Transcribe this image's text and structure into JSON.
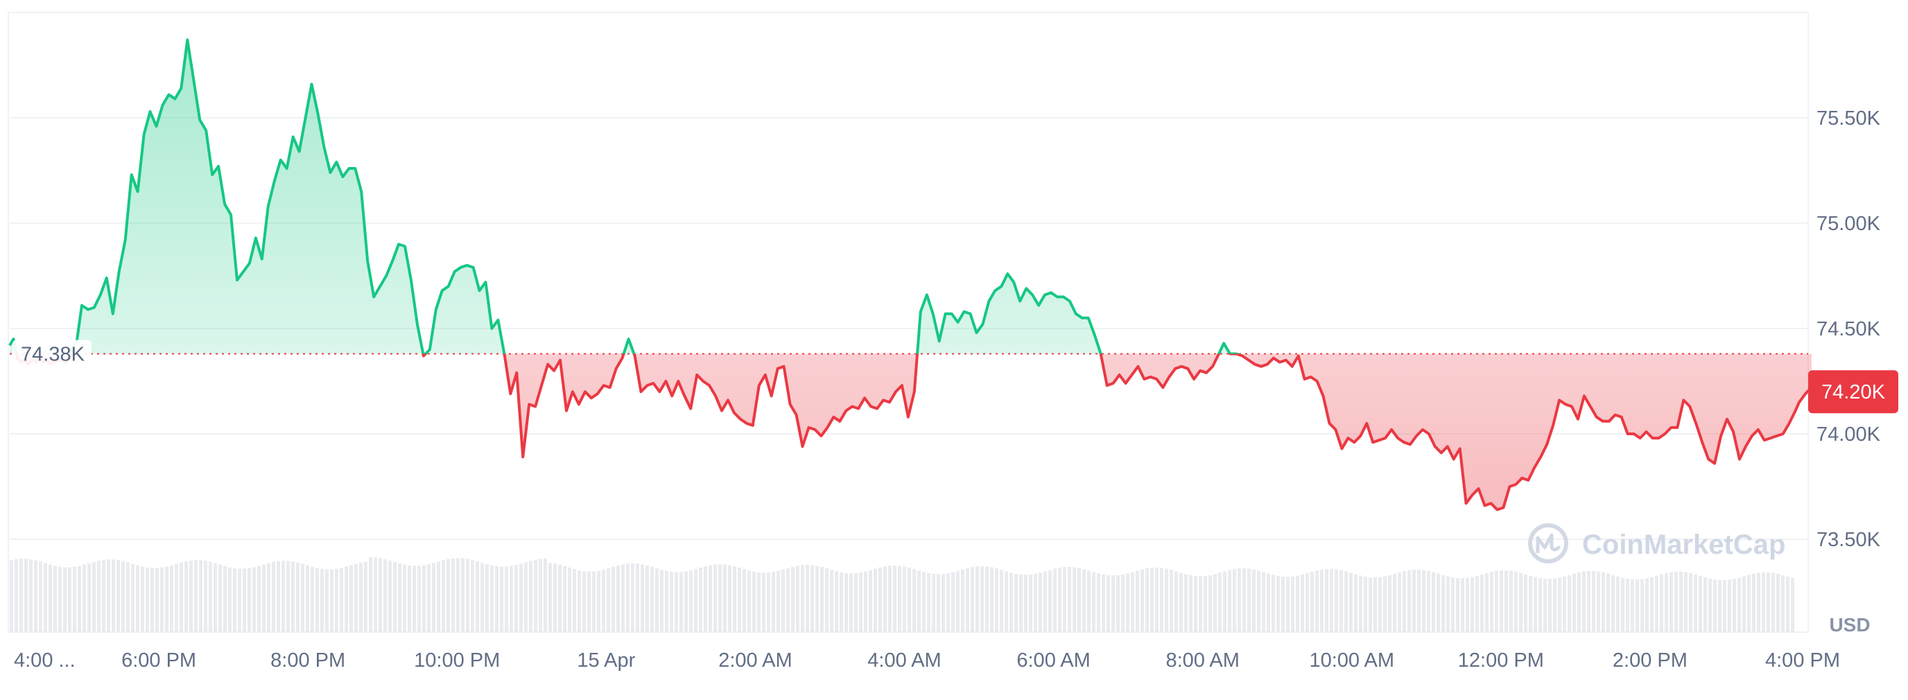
{
  "chart_data": {
    "type": "area",
    "currency_label": "USD",
    "watermark": "CoinMarketCap",
    "baseline_value": 74380,
    "baseline_label": "74.38K",
    "current_value": 74200,
    "current_label": "74.20K",
    "ylim": [
      73300,
      76000
    ],
    "y_ticks": [
      {
        "value": 75500,
        "label": "75.50K"
      },
      {
        "value": 75000,
        "label": "75.00K"
      },
      {
        "value": 74500,
        "label": "74.50K"
      },
      {
        "value": 74000,
        "label": "74.00K"
      },
      {
        "value": 73500,
        "label": "73.50K"
      }
    ],
    "x_range": [
      0,
      1440
    ],
    "x_ticks": [
      {
        "t": 0,
        "label": "4:00 ..."
      },
      {
        "t": 120,
        "label": "6:00 PM"
      },
      {
        "t": 240,
        "label": "8:00 PM"
      },
      {
        "t": 360,
        "label": "10:00 PM"
      },
      {
        "t": 480,
        "label": "15 Apr"
      },
      {
        "t": 600,
        "label": "2:00 AM"
      },
      {
        "t": 720,
        "label": "4:00 AM"
      },
      {
        "t": 840,
        "label": "6:00 AM"
      },
      {
        "t": 960,
        "label": "8:00 AM"
      },
      {
        "t": 1080,
        "label": "10:00 AM"
      },
      {
        "t": 1200,
        "label": "12:00 PM"
      },
      {
        "t": 1320,
        "label": "2:00 PM"
      },
      {
        "t": 1440,
        "label": "4:00 PM"
      }
    ],
    "series": [
      {
        "points": [
          [
            0,
            74420
          ],
          [
            3,
            74450
          ],
          [
            6,
            74360
          ],
          [
            9,
            74340
          ],
          [
            12,
            74350
          ],
          [
            15,
            74330
          ],
          [
            18,
            74350
          ],
          [
            21,
            74340
          ],
          [
            24,
            74360
          ],
          [
            27,
            74340
          ],
          [
            30,
            74350
          ],
          [
            33,
            74330
          ],
          [
            36,
            74340
          ],
          [
            39,
            74350
          ],
          [
            42,
            74350
          ],
          [
            45,
            74340
          ],
          [
            48,
            74360
          ],
          [
            50,
            74400
          ],
          [
            54,
            74440
          ],
          [
            58,
            74610
          ],
          [
            63,
            74590
          ],
          [
            68,
            74600
          ],
          [
            73,
            74660
          ],
          [
            78,
            74740
          ],
          [
            83,
            74570
          ],
          [
            88,
            74770
          ],
          [
            93,
            74920
          ],
          [
            98,
            75230
          ],
          [
            103,
            75150
          ],
          [
            108,
            75420
          ],
          [
            113,
            75530
          ],
          [
            118,
            75460
          ],
          [
            123,
            75560
          ],
          [
            128,
            75610
          ],
          [
            133,
            75590
          ],
          [
            138,
            75640
          ],
          [
            143,
            75870
          ],
          [
            148,
            75680
          ],
          [
            153,
            75490
          ],
          [
            158,
            75440
          ],
          [
            163,
            75230
          ],
          [
            168,
            75270
          ],
          [
            173,
            75090
          ],
          [
            178,
            75040
          ],
          [
            183,
            74730
          ],
          [
            188,
            74770
          ],
          [
            193,
            74810
          ],
          [
            198,
            74930
          ],
          [
            203,
            74830
          ],
          [
            208,
            75080
          ],
          [
            213,
            75200
          ],
          [
            218,
            75300
          ],
          [
            223,
            75260
          ],
          [
            228,
            75410
          ],
          [
            233,
            75340
          ],
          [
            238,
            75500
          ],
          [
            243,
            75660
          ],
          [
            248,
            75520
          ],
          [
            253,
            75360
          ],
          [
            258,
            75240
          ],
          [
            263,
            75290
          ],
          [
            268,
            75220
          ],
          [
            273,
            75260
          ],
          [
            278,
            75260
          ],
          [
            283,
            75150
          ],
          [
            288,
            74820
          ],
          [
            293,
            74650
          ],
          [
            298,
            74700
          ],
          [
            303,
            74750
          ],
          [
            308,
            74820
          ],
          [
            313,
            74900
          ],
          [
            318,
            74890
          ],
          [
            323,
            74730
          ],
          [
            328,
            74520
          ],
          [
            333,
            74370
          ],
          [
            338,
            74400
          ],
          [
            343,
            74590
          ],
          [
            348,
            74680
          ],
          [
            353,
            74700
          ],
          [
            358,
            74770
          ],
          [
            363,
            74790
          ],
          [
            368,
            74800
          ],
          [
            373,
            74790
          ],
          [
            378,
            74680
          ],
          [
            383,
            74720
          ],
          [
            388,
            74500
          ],
          [
            393,
            74540
          ],
          [
            398,
            74380
          ],
          [
            403,
            74190
          ],
          [
            408,
            74290
          ],
          [
            413,
            73890
          ],
          [
            418,
            74140
          ],
          [
            423,
            74130
          ],
          [
            428,
            74230
          ],
          [
            433,
            74330
          ],
          [
            438,
            74300
          ],
          [
            443,
            74350
          ],
          [
            448,
            74110
          ],
          [
            453,
            74200
          ],
          [
            458,
            74140
          ],
          [
            463,
            74200
          ],
          [
            468,
            74170
          ],
          [
            473,
            74190
          ],
          [
            478,
            74230
          ],
          [
            483,
            74220
          ],
          [
            488,
            74310
          ],
          [
            493,
            74360
          ],
          [
            498,
            74450
          ],
          [
            503,
            74370
          ],
          [
            508,
            74200
          ],
          [
            513,
            74230
          ],
          [
            518,
            74240
          ],
          [
            523,
            74200
          ],
          [
            528,
            74250
          ],
          [
            533,
            74180
          ],
          [
            538,
            74250
          ],
          [
            543,
            74180
          ],
          [
            548,
            74120
          ],
          [
            553,
            74280
          ],
          [
            558,
            74250
          ],
          [
            563,
            74230
          ],
          [
            568,
            74180
          ],
          [
            573,
            74110
          ],
          [
            578,
            74160
          ],
          [
            583,
            74100
          ],
          [
            588,
            74070
          ],
          [
            593,
            74050
          ],
          [
            598,
            74040
          ],
          [
            603,
            74230
          ],
          [
            608,
            74280
          ],
          [
            613,
            74180
          ],
          [
            618,
            74310
          ],
          [
            623,
            74320
          ],
          [
            628,
            74140
          ],
          [
            633,
            74090
          ],
          [
            638,
            73940
          ],
          [
            643,
            74030
          ],
          [
            648,
            74020
          ],
          [
            653,
            73990
          ],
          [
            658,
            74030
          ],
          [
            663,
            74080
          ],
          [
            668,
            74060
          ],
          [
            673,
            74110
          ],
          [
            678,
            74130
          ],
          [
            683,
            74120
          ],
          [
            688,
            74170
          ],
          [
            693,
            74130
          ],
          [
            698,
            74120
          ],
          [
            703,
            74160
          ],
          [
            708,
            74150
          ],
          [
            713,
            74200
          ],
          [
            718,
            74230
          ],
          [
            723,
            74080
          ],
          [
            728,
            74200
          ],
          [
            733,
            74580
          ],
          [
            738,
            74660
          ],
          [
            743,
            74570
          ],
          [
            748,
            74440
          ],
          [
            753,
            74570
          ],
          [
            758,
            74570
          ],
          [
            763,
            74530
          ],
          [
            768,
            74580
          ],
          [
            773,
            74570
          ],
          [
            778,
            74480
          ],
          [
            783,
            74520
          ],
          [
            788,
            74630
          ],
          [
            793,
            74680
          ],
          [
            798,
            74700
          ],
          [
            803,
            74760
          ],
          [
            808,
            74720
          ],
          [
            813,
            74630
          ],
          [
            818,
            74690
          ],
          [
            823,
            74660
          ],
          [
            828,
            74610
          ],
          [
            833,
            74660
          ],
          [
            838,
            74670
          ],
          [
            843,
            74650
          ],
          [
            848,
            74650
          ],
          [
            853,
            74630
          ],
          [
            858,
            74570
          ],
          [
            863,
            74550
          ],
          [
            868,
            74550
          ],
          [
            873,
            74470
          ],
          [
            878,
            74380
          ],
          [
            883,
            74230
          ],
          [
            888,
            74240
          ],
          [
            893,
            74280
          ],
          [
            898,
            74240
          ],
          [
            903,
            74280
          ],
          [
            908,
            74320
          ],
          [
            913,
            74260
          ],
          [
            918,
            74270
          ],
          [
            923,
            74260
          ],
          [
            928,
            74220
          ],
          [
            933,
            74270
          ],
          [
            938,
            74310
          ],
          [
            943,
            74320
          ],
          [
            948,
            74310
          ],
          [
            953,
            74260
          ],
          [
            958,
            74300
          ],
          [
            963,
            74290
          ],
          [
            968,
            74320
          ],
          [
            973,
            74380
          ],
          [
            977,
            74430
          ],
          [
            982,
            74380
          ],
          [
            987,
            74380
          ],
          [
            992,
            74370
          ],
          [
            997,
            74350
          ],
          [
            1002,
            74330
          ],
          [
            1007,
            74320
          ],
          [
            1012,
            74330
          ],
          [
            1017,
            74360
          ],
          [
            1022,
            74340
          ],
          [
            1027,
            74350
          ],
          [
            1032,
            74320
          ],
          [
            1037,
            74370
          ],
          [
            1042,
            74260
          ],
          [
            1047,
            74270
          ],
          [
            1052,
            74250
          ],
          [
            1057,
            74180
          ],
          [
            1062,
            74050
          ],
          [
            1067,
            74020
          ],
          [
            1072,
            73930
          ],
          [
            1077,
            73980
          ],
          [
            1082,
            73960
          ],
          [
            1087,
            73990
          ],
          [
            1092,
            74050
          ],
          [
            1097,
            73960
          ],
          [
            1102,
            73970
          ],
          [
            1107,
            73980
          ],
          [
            1112,
            74020
          ],
          [
            1117,
            73980
          ],
          [
            1122,
            73960
          ],
          [
            1127,
            73950
          ],
          [
            1132,
            73990
          ],
          [
            1137,
            74020
          ],
          [
            1142,
            74000
          ],
          [
            1147,
            73940
          ],
          [
            1152,
            73910
          ],
          [
            1157,
            73940
          ],
          [
            1162,
            73880
          ],
          [
            1167,
            73930
          ],
          [
            1172,
            73670
          ],
          [
            1177,
            73710
          ],
          [
            1182,
            73740
          ],
          [
            1187,
            73660
          ],
          [
            1192,
            73670
          ],
          [
            1197,
            73640
          ],
          [
            1202,
            73650
          ],
          [
            1207,
            73750
          ],
          [
            1212,
            73760
          ],
          [
            1217,
            73790
          ],
          [
            1222,
            73780
          ],
          [
            1227,
            73840
          ],
          [
            1232,
            73890
          ],
          [
            1237,
            73950
          ],
          [
            1242,
            74040
          ],
          [
            1247,
            74160
          ],
          [
            1252,
            74140
          ],
          [
            1257,
            74130
          ],
          [
            1262,
            74070
          ],
          [
            1267,
            74180
          ],
          [
            1272,
            74130
          ],
          [
            1277,
            74080
          ],
          [
            1282,
            74060
          ],
          [
            1287,
            74060
          ],
          [
            1292,
            74090
          ],
          [
            1297,
            74080
          ],
          [
            1302,
            74000
          ],
          [
            1307,
            74000
          ],
          [
            1312,
            73980
          ],
          [
            1317,
            74010
          ],
          [
            1322,
            73980
          ],
          [
            1327,
            73980
          ],
          [
            1332,
            74000
          ],
          [
            1337,
            74030
          ],
          [
            1342,
            74030
          ],
          [
            1347,
            74160
          ],
          [
            1352,
            74130
          ],
          [
            1357,
            74050
          ],
          [
            1362,
            73960
          ],
          [
            1367,
            73880
          ],
          [
            1372,
            73860
          ],
          [
            1377,
            73990
          ],
          [
            1382,
            74070
          ],
          [
            1387,
            74010
          ],
          [
            1392,
            73880
          ],
          [
            1397,
            73940
          ],
          [
            1402,
            73990
          ],
          [
            1407,
            74020
          ],
          [
            1412,
            73970
          ],
          [
            1417,
            73980
          ],
          [
            1422,
            73990
          ],
          [
            1427,
            74000
          ],
          [
            1432,
            74050
          ],
          [
            1437,
            74110
          ],
          [
            1440,
            74150
          ],
          [
            1445,
            74190
          ],
          [
            1450,
            74220
          ]
        ]
      }
    ],
    "colors": {
      "up_line": "#16c784",
      "down_line": "#ea3943",
      "up_fill": "#16c784",
      "down_fill": "#ea3943",
      "grid": "#eff2f5",
      "baseline": "#ea3943",
      "volume": "#e9ebef",
      "badge_bg": "#ea3943",
      "base_label_bg": "#ffffff"
    }
  }
}
